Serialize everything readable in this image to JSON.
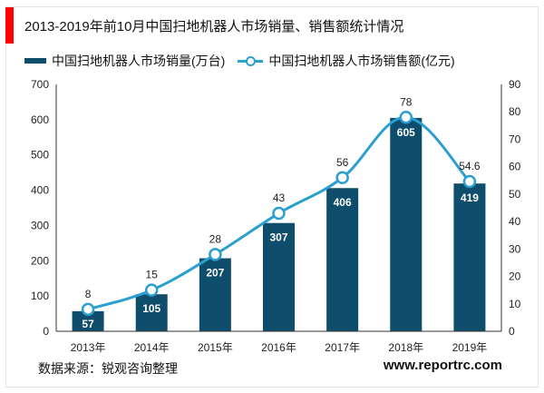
{
  "chart_data": {
    "type": "bar+line",
    "title": "2013-2019年前10月中国扫地机器人市场销量、销售额统计情况",
    "categories": [
      "2013年",
      "2014年",
      "2015年",
      "2016年",
      "2017年",
      "2018年",
      "2019年"
    ],
    "series": [
      {
        "name": "中国扫地机器人市场销量(万台)",
        "type": "bar",
        "axis": "left",
        "values": [
          57,
          105,
          207,
          307,
          406,
          605,
          419
        ],
        "color": "#0e4d6b"
      },
      {
        "name": "中国扫地机器人市场销售额(亿元)",
        "type": "line",
        "axis": "right",
        "values": [
          8,
          15,
          28,
          43,
          56,
          78,
          54.6
        ],
        "color": "#2a9fd0"
      }
    ],
    "ylim_left": [
      0,
      700
    ],
    "yticks_left": [
      0,
      100,
      200,
      300,
      400,
      500,
      600,
      700
    ],
    "ylim_right": [
      0,
      90
    ],
    "yticks_right": [
      0,
      10,
      20,
      30,
      40,
      50,
      60,
      70,
      80,
      90
    ],
    "grid": false,
    "legend": "top-left",
    "source": "数据来源：锐观咨询整理",
    "watermark": "www.reportrc.com"
  }
}
